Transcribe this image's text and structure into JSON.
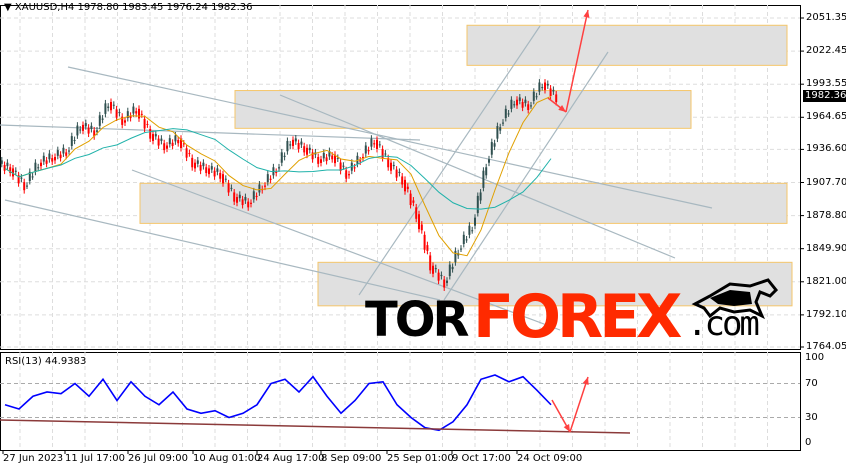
{
  "header": {
    "symbol": "XAUUSD,H4",
    "ohlc": "1978.80 1983.45 1976.24 1982.36",
    "menu_icon": "triangle-down-icon"
  },
  "current_price": "1982.36",
  "rsi_panel": {
    "label": "RSI(13) 44.9383",
    "levels": [
      "100",
      "70",
      "30",
      "0"
    ]
  },
  "logo": {
    "part1": "TOR",
    "part2": "FOREX",
    "part3": ".com"
  },
  "colors": {
    "bull": "#2f4f4f",
    "bear": "#ff0000",
    "rsi": "#0000ff",
    "zone_fill": "#e0e0e0",
    "zone_border": "#f5c66a",
    "ma_fast": "#e0a000",
    "ma_slow": "#20b2aa",
    "arrow": "#ff4040",
    "trendline": "#a8b8c0",
    "rsi_trend": "#8b3a3a",
    "logo_red": "#ff2a00"
  },
  "chart_data": {
    "type": "candlestick",
    "price_axis": [
      "2051.35",
      "2022.45",
      "1993.55",
      "1964.65",
      "1936.60",
      "1907.70",
      "1878.80",
      "1849.90",
      "1821.00",
      "1792.10",
      "1764.05"
    ],
    "ylim": [
      1764.05,
      2051.35
    ],
    "time_axis": [
      "27 Jun 2023",
      "11 Jul 17:00",
      "26 Jul 09:00",
      "10 Aug 01:00",
      "24 Aug 17:00",
      "8 Sep 09:00",
      "25 Sep 01:00",
      "9 Oct 17:00",
      "24 Oct 09:00"
    ],
    "grid": true,
    "closes": [
      1920,
      1905,
      1925,
      1930,
      1935,
      1958,
      1952,
      1978,
      1962,
      1972,
      1950,
      1940,
      1946,
      1925,
      1920,
      1915,
      1895,
      1890,
      1905,
      1920,
      1945,
      1938,
      1928,
      1932,
      1915,
      1930,
      1945,
      1925,
      1910,
      1880,
      1835,
      1820,
      1850,
      1870,
      1925,
      1960,
      1980,
      1975,
      1995,
      1982
    ],
    "rsi": [
      45,
      40,
      55,
      60,
      58,
      70,
      55,
      75,
      50,
      72,
      55,
      45,
      60,
      40,
      35,
      38,
      30,
      35,
      45,
      70,
      75,
      60,
      78,
      55,
      35,
      50,
      70,
      72,
      45,
      30,
      18,
      15,
      25,
      45,
      75,
      80,
      72,
      78,
      62,
      45
    ],
    "rsi_ylim": [
      0,
      100
    ],
    "zones": [
      [
        2010,
        2045
      ],
      [
        1955,
        1988
      ],
      [
        1872,
        1907
      ],
      [
        1800,
        1838
      ]
    ]
  }
}
